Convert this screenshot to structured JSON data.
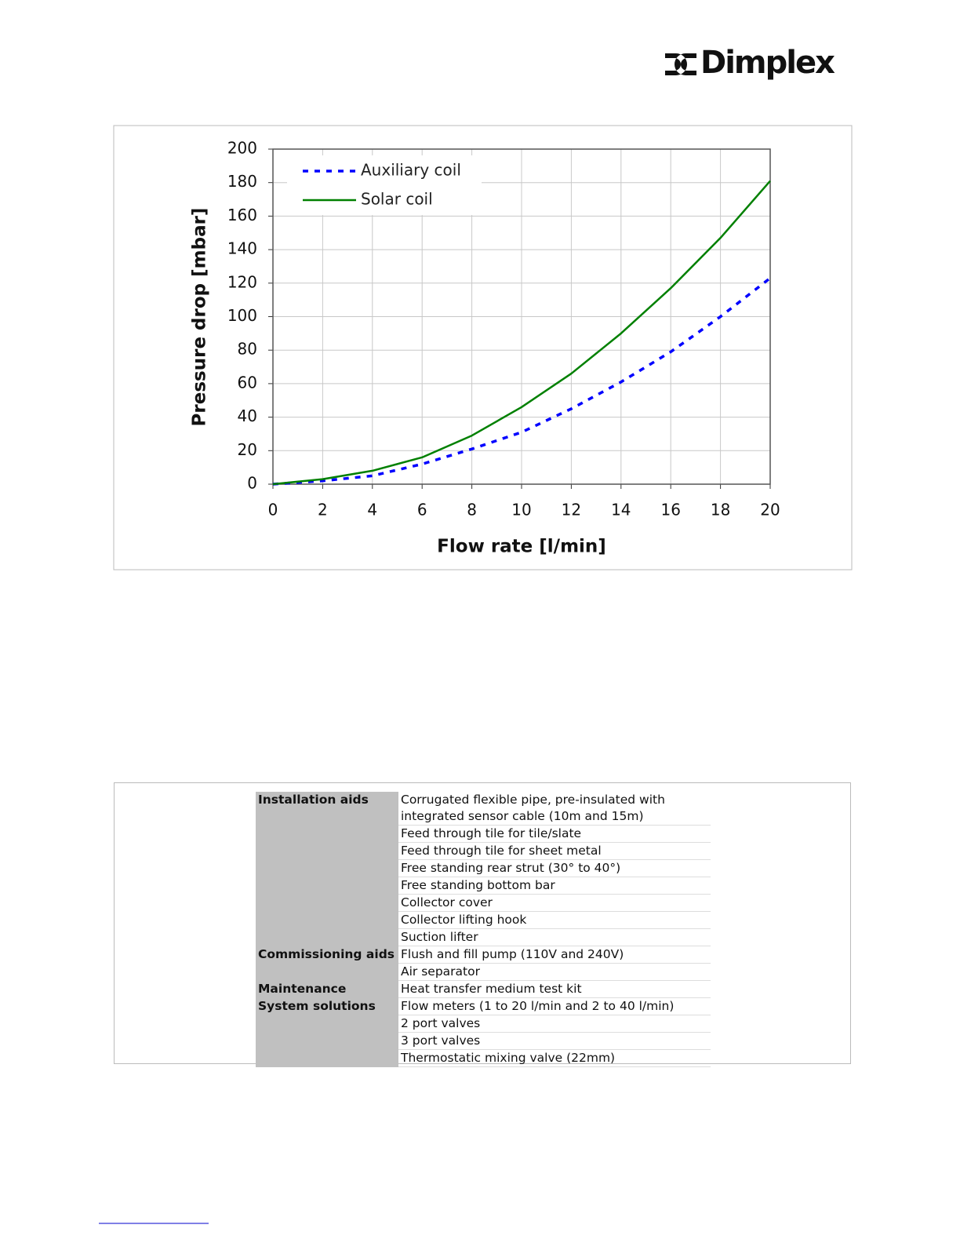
{
  "header": {
    "logo": "Dimplex"
  },
  "chart_data": {
    "type": "line",
    "xlabel": "Flow rate [l/min]",
    "ylabel": "Pressure drop [mbar]",
    "x": [
      0,
      2,
      4,
      6,
      8,
      10,
      12,
      14,
      16,
      18,
      20
    ],
    "series": [
      {
        "name": "Auxiliary coil",
        "color": "#0000ff",
        "dashed": true,
        "values": [
          0,
          2,
          5,
          12,
          21,
          31,
          45,
          61,
          79,
          100,
          123
        ]
      },
      {
        "name": "Solar coil",
        "color": "#008000",
        "dashed": false,
        "values": [
          0,
          3,
          8,
          16,
          29,
          46,
          66,
          90,
          117,
          147,
          181
        ]
      }
    ],
    "xlim": [
      0,
      20
    ],
    "xticks": [
      0,
      2,
      4,
      6,
      8,
      10,
      12,
      14,
      16,
      18,
      20
    ],
    "ylim": [
      0,
      200
    ],
    "yticks": [
      0,
      20,
      40,
      60,
      80,
      100,
      120,
      140,
      160,
      180,
      200
    ],
    "grid": true,
    "legend": "top-left"
  },
  "table": {
    "groups": [
      {
        "label": "Installation aids",
        "items": [
          "Corrugated flexible pipe, pre-insulated with integrated sensor cable (10m and 15m)",
          "Feed through tile for tile/slate",
          "Feed through tile for sheet metal",
          "Free standing rear strut (30° to 40°)",
          "Free standing bottom bar",
          "Collector cover",
          "Collector lifting hook",
          "Suction lifter"
        ]
      },
      {
        "label": "Commissioning aids",
        "items": [
          "Flush and fill pump (110V and 240V)",
          "Air separator"
        ]
      },
      {
        "label": "Maintenance",
        "items": [
          "Heat transfer medium test kit"
        ]
      },
      {
        "label": "System solutions",
        "items": [
          "Flow meters (1 to 20 l/min and 2 to 40 l/min)",
          "2 port valves",
          "3 port valves",
          "Thermostatic mixing valve (22mm)"
        ]
      }
    ]
  }
}
